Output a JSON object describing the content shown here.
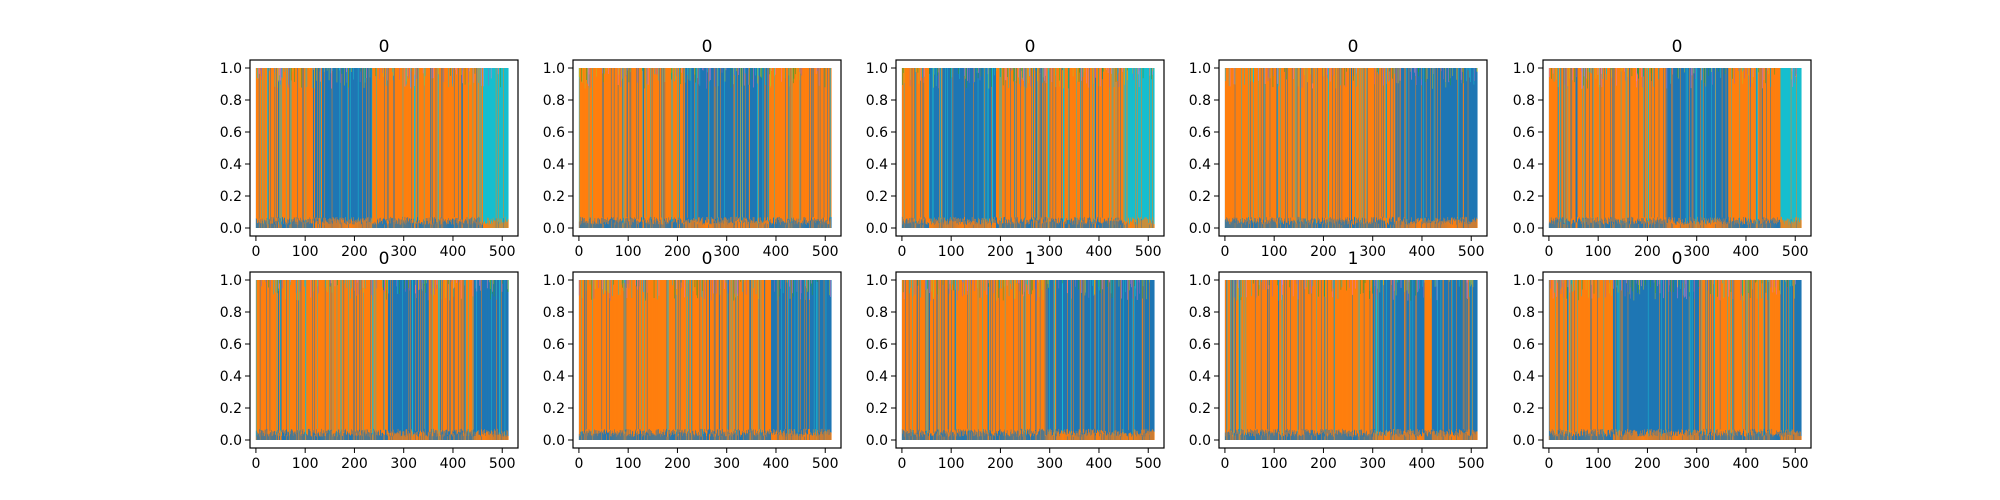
{
  "chart_data": [
    {
      "type": "area",
      "title": "0",
      "xlabel": "",
      "ylabel": "",
      "xlim": [
        -12,
        532
      ],
      "ylim": [
        -0.05,
        1.05
      ],
      "xticks": [
        "0",
        "100",
        "200",
        "300",
        "400",
        "500"
      ],
      "yticks": [
        "0.0",
        "0.2",
        "0.4",
        "0.6",
        "0.8",
        "1.0"
      ],
      "grid": false,
      "dominant_segments": [
        {
          "x": [
            0,
            120
          ],
          "series": "orange"
        },
        {
          "x": [
            120,
            235
          ],
          "series": "blue"
        },
        {
          "x": [
            235,
            460
          ],
          "series": "orange"
        },
        {
          "x": [
            460,
            512
          ],
          "series": "cyan"
        }
      ]
    },
    {
      "type": "area",
      "title": "0",
      "xlabel": "",
      "ylabel": "",
      "xlim": [
        -12,
        532
      ],
      "ylim": [
        -0.05,
        1.05
      ],
      "xticks": [
        "0",
        "100",
        "200",
        "300",
        "400",
        "500"
      ],
      "yticks": [
        "0.0",
        "0.2",
        "0.4",
        "0.6",
        "0.8",
        "1.0"
      ],
      "grid": false,
      "dominant_segments": [
        {
          "x": [
            0,
            215
          ],
          "series": "orange"
        },
        {
          "x": [
            215,
            385
          ],
          "series": "blue"
        },
        {
          "x": [
            385,
            512
          ],
          "series": "orange"
        }
      ]
    },
    {
      "type": "area",
      "title": "0",
      "xlabel": "",
      "ylabel": "",
      "xlim": [
        -12,
        532
      ],
      "ylim": [
        -0.05,
        1.05
      ],
      "xticks": [
        "0",
        "100",
        "200",
        "300",
        "400",
        "500"
      ],
      "yticks": [
        "0.0",
        "0.2",
        "0.4",
        "0.6",
        "0.8",
        "1.0"
      ],
      "grid": false,
      "dominant_segments": [
        {
          "x": [
            0,
            55
          ],
          "series": "orange"
        },
        {
          "x": [
            55,
            190
          ],
          "series": "blue"
        },
        {
          "x": [
            190,
            450
          ],
          "series": "orange"
        },
        {
          "x": [
            450,
            512
          ],
          "series": "cyan"
        }
      ]
    },
    {
      "type": "area",
      "title": "0",
      "xlabel": "",
      "ylabel": "",
      "xlim": [
        -12,
        532
      ],
      "ylim": [
        -0.05,
        1.05
      ],
      "xticks": [
        "0",
        "100",
        "200",
        "300",
        "400",
        "500"
      ],
      "yticks": [
        "0.0",
        "0.2",
        "0.4",
        "0.6",
        "0.8",
        "1.0"
      ],
      "grid": false,
      "dominant_segments": [
        {
          "x": [
            0,
            345
          ],
          "series": "orange"
        },
        {
          "x": [
            345,
            512
          ],
          "series": "blue"
        }
      ]
    },
    {
      "type": "area",
      "title": "0",
      "xlabel": "",
      "ylabel": "",
      "xlim": [
        -12,
        532
      ],
      "ylim": [
        -0.05,
        1.05
      ],
      "xticks": [
        "0",
        "100",
        "200",
        "300",
        "400",
        "500"
      ],
      "yticks": [
        "0.0",
        "0.2",
        "0.4",
        "0.6",
        "0.8",
        "1.0"
      ],
      "grid": false,
      "dominant_segments": [
        {
          "x": [
            0,
            240
          ],
          "series": "orange"
        },
        {
          "x": [
            240,
            365
          ],
          "series": "blue"
        },
        {
          "x": [
            365,
            470
          ],
          "series": "orange"
        },
        {
          "x": [
            470,
            512
          ],
          "series": "cyan"
        }
      ]
    },
    {
      "type": "area",
      "title": "0",
      "xlabel": "",
      "ylabel": "",
      "xlim": [
        -12,
        532
      ],
      "ylim": [
        -0.05,
        1.05
      ],
      "xticks": [
        "0",
        "100",
        "200",
        "300",
        "400",
        "500"
      ],
      "yticks": [
        "0.0",
        "0.2",
        "0.4",
        "0.6",
        "0.8",
        "1.0"
      ],
      "grid": false,
      "dominant_segments": [
        {
          "x": [
            0,
            270
          ],
          "series": "orange"
        },
        {
          "x": [
            270,
            350
          ],
          "series": "blue"
        },
        {
          "x": [
            350,
            440
          ],
          "series": "orange"
        },
        {
          "x": [
            440,
            512
          ],
          "series": "blue"
        }
      ]
    },
    {
      "type": "area",
      "title": "0",
      "xlabel": "",
      "ylabel": "",
      "xlim": [
        -12,
        532
      ],
      "ylim": [
        -0.05,
        1.05
      ],
      "xticks": [
        "0",
        "100",
        "200",
        "300",
        "400",
        "500"
      ],
      "yticks": [
        "0.0",
        "0.2",
        "0.4",
        "0.6",
        "0.8",
        "1.0"
      ],
      "grid": false,
      "dominant_segments": [
        {
          "x": [
            0,
            390
          ],
          "series": "orange"
        },
        {
          "x": [
            390,
            512
          ],
          "series": "blue"
        }
      ]
    },
    {
      "type": "area",
      "title": "1",
      "xlabel": "",
      "ylabel": "",
      "xlim": [
        -12,
        532
      ],
      "ylim": [
        -0.05,
        1.05
      ],
      "xticks": [
        "0",
        "100",
        "200",
        "300",
        "400",
        "500"
      ],
      "yticks": [
        "0.0",
        "0.2",
        "0.4",
        "0.6",
        "0.8",
        "1.0"
      ],
      "grid": false,
      "dominant_segments": [
        {
          "x": [
            0,
            290
          ],
          "series": "orange"
        },
        {
          "x": [
            290,
            512
          ],
          "series": "blue"
        }
      ]
    },
    {
      "type": "area",
      "title": "1",
      "xlabel": "",
      "ylabel": "",
      "xlim": [
        -12,
        532
      ],
      "ylim": [
        -0.05,
        1.05
      ],
      "xticks": [
        "0",
        "100",
        "200",
        "300",
        "400",
        "500"
      ],
      "yticks": [
        "0.0",
        "0.2",
        "0.4",
        "0.6",
        "0.8",
        "1.0"
      ],
      "grid": false,
      "dominant_segments": [
        {
          "x": [
            0,
            300
          ],
          "series": "orange"
        },
        {
          "x": [
            300,
            405
          ],
          "series": "blue"
        },
        {
          "x": [
            405,
            420
          ],
          "series": "orange"
        },
        {
          "x": [
            420,
            512
          ],
          "series": "blue"
        }
      ]
    },
    {
      "type": "area",
      "title": "0",
      "xlabel": "",
      "ylabel": "",
      "xlim": [
        -12,
        532
      ],
      "ylim": [
        -0.05,
        1.05
      ],
      "xticks": [
        "0",
        "100",
        "200",
        "300",
        "400",
        "500"
      ],
      "yticks": [
        "0.0",
        "0.2",
        "0.4",
        "0.6",
        "0.8",
        "1.0"
      ],
      "grid": false,
      "dominant_segments": [
        {
          "x": [
            0,
            130
          ],
          "series": "orange"
        },
        {
          "x": [
            130,
            305
          ],
          "series": "blue"
        },
        {
          "x": [
            305,
            470
          ],
          "series": "orange"
        },
        {
          "x": [
            470,
            512
          ],
          "series": "blue"
        }
      ]
    }
  ],
  "colors": {
    "blue": "#1f77b4",
    "orange": "#ff7f0e",
    "cyan": "#17becf",
    "green": "#2ca02c",
    "purple": "#9467bd",
    "olive": "#bcbd22",
    "pink": "#e377c2",
    "axis": "#000000",
    "background": "#ffffff"
  }
}
